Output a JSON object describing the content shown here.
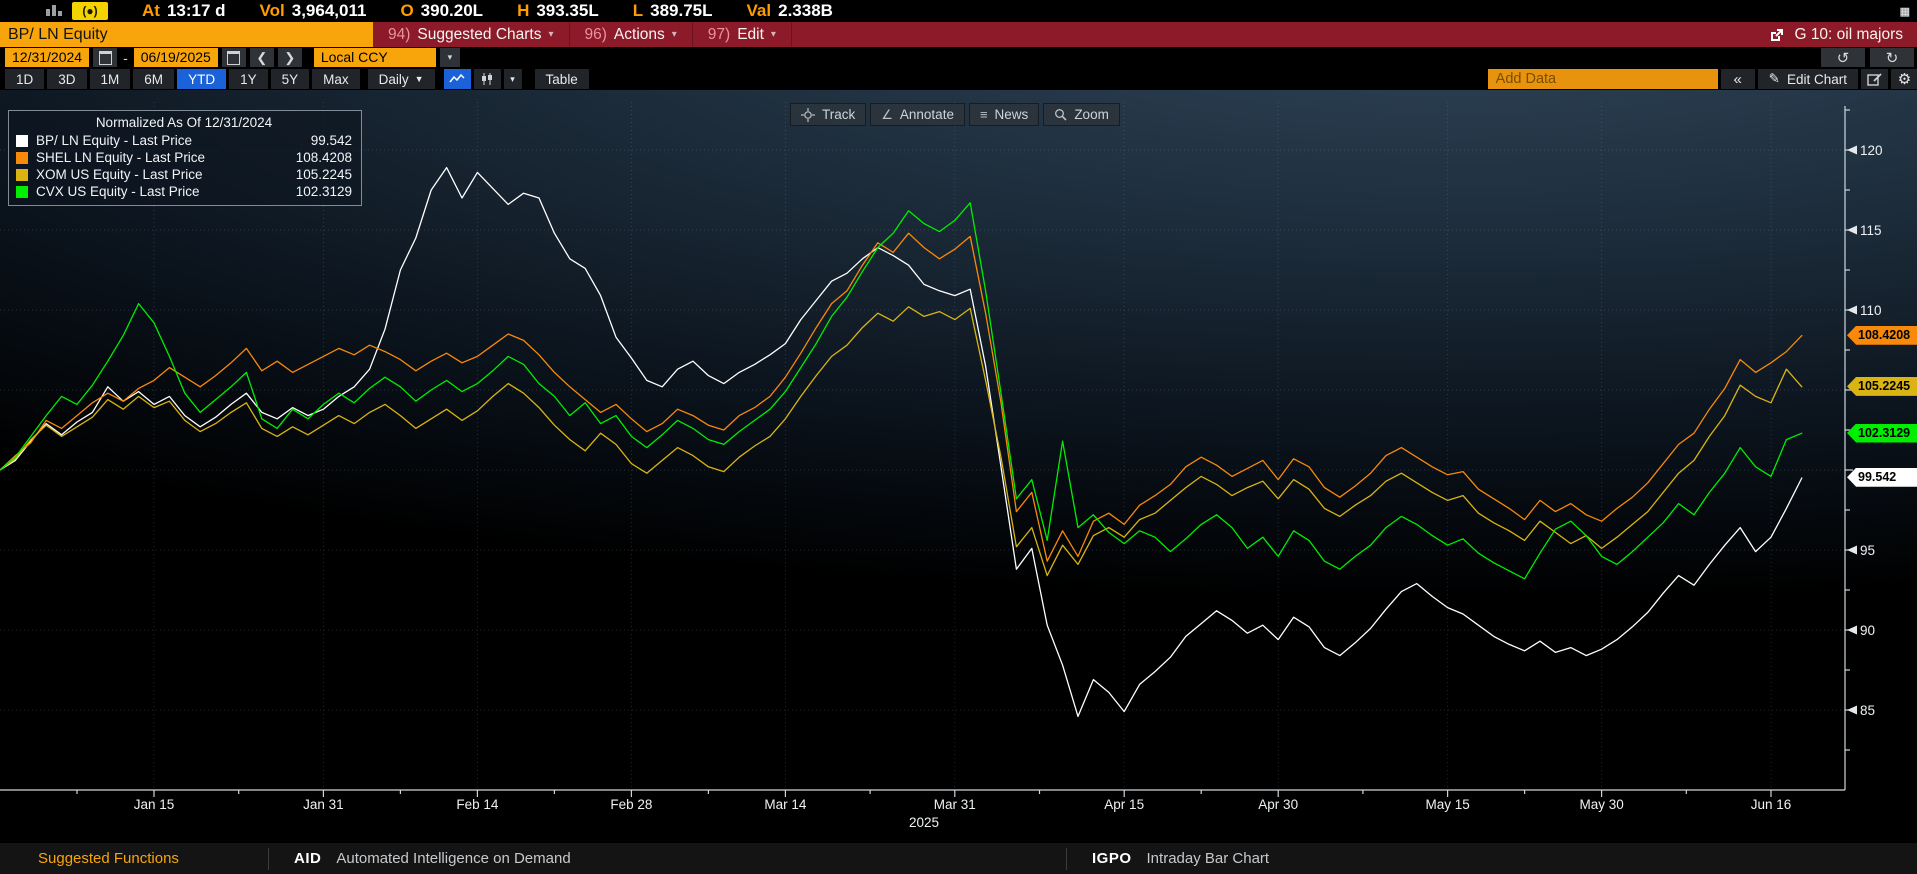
{
  "top_bar": {
    "fields": [
      {
        "label": "At",
        "value": "13:17 d"
      },
      {
        "label": "Vol",
        "value": "3,964,011"
      },
      {
        "label": "O",
        "value": "390.20L"
      },
      {
        "label": "H",
        "value": "393.35L"
      },
      {
        "label": "L",
        "value": "389.75L"
      },
      {
        "label": "Val",
        "value": "2.338B"
      }
    ]
  },
  "menu_bar": {
    "security": "BP/ LN Equity",
    "items": [
      {
        "num": "94)",
        "label": "Suggested Charts"
      },
      {
        "num": "96)",
        "label": "Actions"
      },
      {
        "num": "97)",
        "label": "Edit"
      }
    ],
    "right_label": "G 10: oil majors"
  },
  "date_bar": {
    "start_date": "12/31/2024",
    "separator": "-",
    "end_date": "06/19/2025",
    "currency": "Local CCY"
  },
  "toolbar": {
    "periods": [
      "1D",
      "3D",
      "1M",
      "6M",
      "YTD",
      "1Y",
      "5Y",
      "Max"
    ],
    "active_period": "YTD",
    "frequency": "Daily",
    "table_label": "Table",
    "add_data_placeholder": "Add Data",
    "collapse_label": "«",
    "edit_chart_label": "Edit Chart"
  },
  "chart_tools": {
    "track": "Track",
    "annotate": "Annotate",
    "news": "News",
    "zoom": "Zoom"
  },
  "legend": {
    "title": "Normalized As Of 12/31/2024",
    "series": [
      {
        "name": "BP/ LN Equity - Last Price",
        "value": "99.542",
        "color": "#ffffff"
      },
      {
        "name": "SHEL LN Equity - Last Price",
        "value": "108.4208",
        "color": "#f8890a"
      },
      {
        "name": "XOM US Equity - Last Price",
        "value": "105.2245",
        "color": "#d9b412"
      },
      {
        "name": "CVX US Equity - Last Price",
        "value": "102.3129",
        "color": "#00ee00"
      }
    ]
  },
  "chart_data": {
    "type": "line",
    "title": "Normalized As Of 12/31/2024",
    "x_axis": "Trading days 12/31/2024 - 06/19/2025, daily",
    "ylim": [
      80,
      123.75
    ],
    "y_gridlines": [
      85,
      90,
      95,
      100,
      105,
      110,
      115,
      120
    ],
    "y_tick_labels": [
      85,
      90,
      95,
      110,
      115,
      120
    ],
    "x_ticks": [
      {
        "label": "Jan 15",
        "day": 10
      },
      {
        "label": "Jan 31",
        "day": 21
      },
      {
        "label": "Feb 14",
        "day": 31
      },
      {
        "label": "Feb 28",
        "day": 41
      },
      {
        "label": "Mar 14",
        "day": 51
      },
      {
        "label": "Mar 31",
        "day": 62
      },
      {
        "label": "Apr 15",
        "day": 73
      },
      {
        "label": "Apr 30",
        "day": 83
      },
      {
        "label": "May 15",
        "day": 94
      },
      {
        "label": "May 30",
        "day": 104
      },
      {
        "label": "Jun 16",
        "day": 115
      }
    ],
    "year_label": {
      "label": "2025",
      "day": 60
    },
    "legend_position": "top-left",
    "grid": "dotted",
    "series": [
      {
        "id": "bp",
        "name": "BP/ LN Equity - Last Price",
        "color": "#ffffff",
        "tag": "99.542",
        "last": 99.542,
        "values": [
          100,
          100.6,
          101.8,
          102.9,
          102.2,
          103,
          103.6,
          105.2,
          104.3,
          104.9,
          104.1,
          104.6,
          103.4,
          102.7,
          103.3,
          104.1,
          104.8,
          103.6,
          103.2,
          103.9,
          103.4,
          103.8,
          104.6,
          105.2,
          106.3,
          108.8,
          112.5,
          114.5,
          117.5,
          118.9,
          117,
          118.6,
          117.6,
          116.6,
          117.3,
          117,
          114.8,
          113.2,
          112.6,
          110.9,
          108.3,
          107,
          105.6,
          105.2,
          106.3,
          106.8,
          105.9,
          105.4,
          106.1,
          106.6,
          107.2,
          107.9,
          109.4,
          110.6,
          111.8,
          112.3,
          113.2,
          113.9,
          113.4,
          112.8,
          111.6,
          111.2,
          110.9,
          111.3,
          106.5,
          100.2,
          93.8,
          95.1,
          90.3,
          87.8,
          84.6,
          86.9,
          86.1,
          84.9,
          86.6,
          87.4,
          88.3,
          89.6,
          90.4,
          91.2,
          90.6,
          89.8,
          90.3,
          89.4,
          90.8,
          90.2,
          88.9,
          88.4,
          89.2,
          90.1,
          91.3,
          92.4,
          92.9,
          92.1,
          91.4,
          91,
          90.3,
          89.6,
          89.1,
          88.7,
          89.3,
          88.6,
          88.9,
          88.4,
          88.8,
          89.4,
          90.2,
          91.1,
          92.3,
          93.4,
          92.8,
          94.1,
          95.3,
          96.4,
          94.9,
          95.8,
          97.6,
          99.5
        ]
      },
      {
        "id": "shel",
        "name": "SHEL LN Equity - Last Price",
        "color": "#f8890a",
        "tag": "108.4208",
        "last": 108.4208,
        "values": [
          100,
          100.9,
          101.7,
          103.1,
          102.6,
          103.4,
          104.2,
          104.8,
          104.3,
          105.1,
          105.6,
          106.4,
          105.8,
          105.2,
          105.9,
          106.7,
          107.6,
          106.2,
          106.8,
          106.1,
          106.6,
          107.1,
          107.6,
          107.2,
          107.8,
          107.4,
          106.9,
          106.2,
          106.8,
          107.3,
          106.7,
          107.1,
          107.8,
          108.5,
          108.1,
          107.2,
          106.1,
          105.2,
          104.4,
          103.6,
          104.1,
          103.2,
          102.4,
          102.9,
          103.8,
          103.4,
          102.8,
          102.5,
          103.4,
          103.9,
          104.6,
          105.8,
          107.3,
          108.9,
          110.4,
          111.2,
          112.8,
          114.2,
          113.6,
          114.8,
          113.9,
          113.2,
          113.8,
          114.6,
          109.8,
          104.2,
          97.4,
          98.6,
          94.3,
          96.2,
          94.6,
          96.8,
          97.3,
          96.6,
          97.8,
          98.4,
          99.1,
          100.2,
          100.8,
          100.3,
          99.6,
          100.1,
          100.6,
          99.4,
          100.7,
          100.2,
          98.9,
          98.3,
          99,
          99.8,
          100.9,
          101.4,
          100.8,
          100.2,
          99.7,
          99.9,
          98.8,
          98.2,
          97.6,
          96.9,
          98.1,
          97.4,
          97.9,
          97.2,
          96.8,
          97.6,
          98.3,
          99.2,
          100.4,
          101.6,
          102.3,
          103.8,
          105.1,
          106.9,
          106.1,
          106.7,
          107.4,
          108.4
        ]
      },
      {
        "id": "xom",
        "name": "XOM US Equity - Last Price",
        "color": "#d9b412",
        "tag": "105.2245",
        "last": 105.2245,
        "values": [
          100,
          100.7,
          101.9,
          102.8,
          102.1,
          102.7,
          103.3,
          104.4,
          103.8,
          104.6,
          103.9,
          104.3,
          103.1,
          102.4,
          102.9,
          103.6,
          104.2,
          102.6,
          102.1,
          102.7,
          102.2,
          102.8,
          103.4,
          102.9,
          103.6,
          104.1,
          103.4,
          102.6,
          103.2,
          103.8,
          103.1,
          103.7,
          104.6,
          105.4,
          104.8,
          103.9,
          102.8,
          101.9,
          101.2,
          102.3,
          101.6,
          100.4,
          99.8,
          100.6,
          101.4,
          100.9,
          100.2,
          99.9,
          100.8,
          101.5,
          102.1,
          103.2,
          104.6,
          105.9,
          107.1,
          107.8,
          108.9,
          109.8,
          109.3,
          110.2,
          109.6,
          109.9,
          109.4,
          110.1,
          105.6,
          100.8,
          95.2,
          96.4,
          93.4,
          95.3,
          94.1,
          95.9,
          96.4,
          95.8,
          96.9,
          97.3,
          98.1,
          98.9,
          99.6,
          99.1,
          98.4,
          98.9,
          99.3,
          98.2,
          99.4,
          98.8,
          97.6,
          97.1,
          97.8,
          98.4,
          99.3,
          99.8,
          99.2,
          98.6,
          98.1,
          98.4,
          97.3,
          96.7,
          96.2,
          95.6,
          96.8,
          96.1,
          95.4,
          95.9,
          95.1,
          95.8,
          96.6,
          97.4,
          98.6,
          99.8,
          100.6,
          102.1,
          103.4,
          105.3,
          104.6,
          104.2,
          106.3,
          105.2
        ]
      },
      {
        "id": "cvx",
        "name": "CVX US Equity - Last Price",
        "color": "#00ee00",
        "tag": "102.3129",
        "last": 102.3129,
        "values": [
          100,
          100.8,
          102.1,
          103.4,
          104.6,
          104.1,
          105.3,
          106.8,
          108.4,
          110.4,
          109.2,
          107.1,
          104.8,
          103.6,
          104.4,
          105.2,
          106.1,
          103.2,
          102.6,
          103.8,
          103.2,
          104.1,
          104.8,
          104.2,
          105.1,
          105.8,
          105.2,
          104.3,
          105,
          105.6,
          104.9,
          105.4,
          106.2,
          107.1,
          106.6,
          105.4,
          104.6,
          103.4,
          104.2,
          102.9,
          103.4,
          102.1,
          101.4,
          102.2,
          103.1,
          102.6,
          101.9,
          101.6,
          102.4,
          103.1,
          103.8,
          104.9,
          106.4,
          107.9,
          109.6,
          110.8,
          112.4,
          113.9,
          114.8,
          116.2,
          115.4,
          114.9,
          115.6,
          116.7,
          111.2,
          104.8,
          98.2,
          99.4,
          95.6,
          101.8,
          96.4,
          97.2,
          96.1,
          95.4,
          96.2,
          95.8,
          94.9,
          95.7,
          96.6,
          97.2,
          96.4,
          95.1,
          95.8,
          94.6,
          96.2,
          95.6,
          94.3,
          93.8,
          94.6,
          95.3,
          96.4,
          97.1,
          96.6,
          95.9,
          95.3,
          95.7,
          94.8,
          94.2,
          93.7,
          93.2,
          94.8,
          96.3,
          96.8,
          95.9,
          94.6,
          94.1,
          94.9,
          95.8,
          96.7,
          97.9,
          97.2,
          98.6,
          99.8,
          101.4,
          100.2,
          99.6,
          101.9,
          102.3
        ]
      }
    ]
  },
  "footer": {
    "suggested": "Suggested Functions",
    "items": [
      {
        "code": "AID",
        "desc": "Automated Intelligence on Demand"
      },
      {
        "code": "IGPO",
        "desc": "Intraday Bar Chart"
      }
    ]
  },
  "colors": {
    "accent_blue": "#1b62d8",
    "input_orange": "#f7a50a",
    "menu_red": "#8c1a28",
    "label_amber": "#ff9d00"
  }
}
